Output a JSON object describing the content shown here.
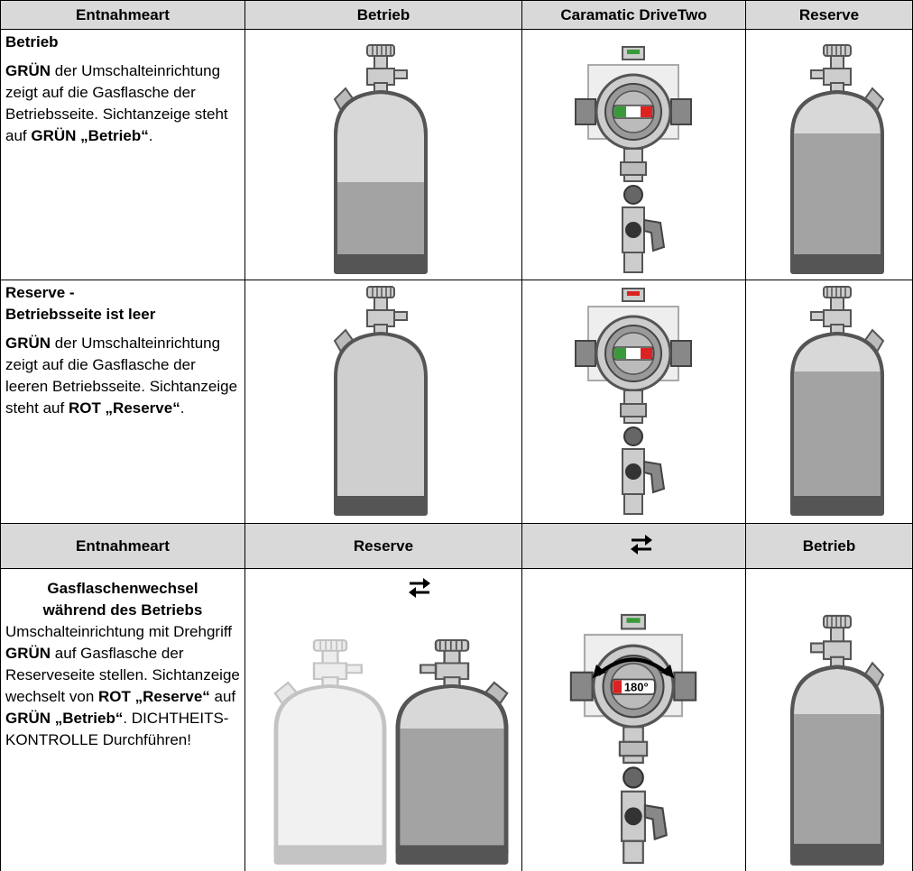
{
  "table": {
    "header": [
      "Entnahmeart",
      "Betrieb",
      "Caramatic DriveTwo",
      "Reserve"
    ],
    "rows": [
      {
        "title": [
          "Betrieb"
        ],
        "body": [
          "GRÜN",
          " der Umschalteinrichtung zeigt auf die Gasflasche der Betriebsseite. Sichtanzeige steht auf ",
          "GRÜN „Betrieb“",
          "."
        ]
      },
      {
        "title": [
          "Reserve -",
          "Betriebsseite ist leer"
        ],
        "body": [
          "GRÜN",
          " der Umschalteinrichtung zeigt auf die Gasflasche der leeren Betriebsseite. Sichtanzeige steht auf ",
          "ROT „Reserve“",
          "."
        ]
      }
    ],
    "header2": [
      "Entnahmeart",
      "Reserve",
      "Betrieb"
    ],
    "change": {
      "title": [
        "Gasflaschenwechsel",
        "während des Betriebs"
      ],
      "body": [
        "Umschalteinrichtung mit Drehgriff ",
        "GRÜN",
        " auf Gasflasche der Reserveseite stellen. Sichtanzeige wechselt von ",
        "ROT „Reserve“",
        " auf ",
        "GRÜN „Betrieb“",
        ". DICHTHEITS-KONTROLLE Durchführen!"
      ],
      "dial_label": "180°"
    }
  }
}
